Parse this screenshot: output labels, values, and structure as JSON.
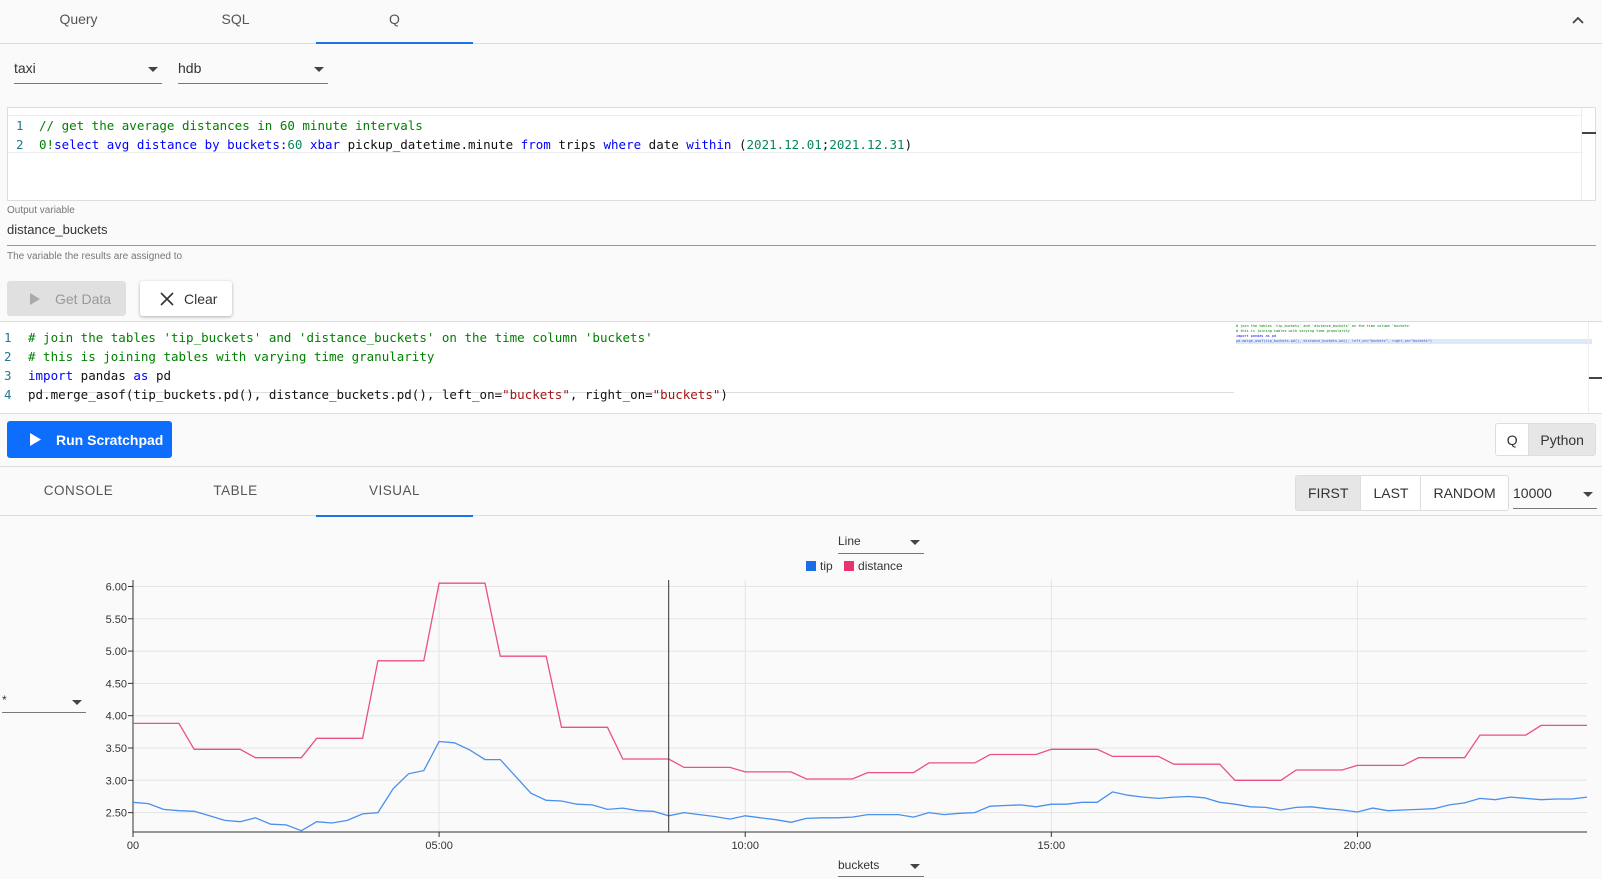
{
  "top_tabs": [
    {
      "label": "Query"
    },
    {
      "label": "SQL"
    },
    {
      "label": "Q"
    }
  ],
  "selects": {
    "table": "taxi",
    "database": "hdb"
  },
  "q_editor": {
    "line1": "// get the average distances in 60 minute intervals",
    "line2_parts": {
      "a": "0!",
      "b": "select",
      "c": " avg distance ",
      "d": "by",
      "e": " buckets:",
      "f": "60",
      "g": " xbar",
      "h": " pickup_datetime.minute ",
      "i": "from",
      "j": " trips ",
      "k": "where",
      "l": " date ",
      "m": "within",
      "n": " (",
      "o": "2021.12.01",
      "p": ";",
      "q": "2021.12.31",
      "r": ")"
    }
  },
  "output": {
    "label": "Output variable",
    "value": "distance_buckets",
    "help": "The variable the results are assigned to"
  },
  "buttons": {
    "get_data": "Get Data",
    "clear": "Clear",
    "run": "Run Scratchpad"
  },
  "py_editor": {
    "line1": "# join the tables 'tip_buckets' and 'distance_buckets' on the time column 'buckets'",
    "line2": "# this is joining tables with varying time granularity",
    "line3_a": "import",
    "line3_b": " pandas ",
    "line3_c": "as",
    "line3_d": " pd",
    "line4_a": "pd.merge_asof(tip_buckets.pd(), distance_buckets.pd(), left_on=",
    "line4_b": "\"buckets\"",
    "line4_c": ", right_on=",
    "line4_d": "\"buckets\"",
    "line4_e": ")"
  },
  "line_numbers": [
    "1",
    "2",
    "3",
    "4"
  ],
  "lang_toggle": [
    "Q",
    "Python"
  ],
  "result_tabs": [
    "CONSOLE",
    "TABLE",
    "VISUAL"
  ],
  "sample_options": [
    "FIRST",
    "LAST",
    "RANDOM"
  ],
  "sample_size": "10000",
  "chart_controls": {
    "chart_type": "Line",
    "x_column": "buckets",
    "y_column": "*"
  },
  "colors": {
    "accent": "#1a73e8",
    "run_button": "#0d6efd",
    "tip": "#2b7de9",
    "distance": "#e8336c"
  },
  "chart_data": {
    "type": "line",
    "xlabel": "",
    "ylabel": "",
    "x_ticks": [
      "00",
      "05:00",
      "10:00",
      "15:00",
      "20:00"
    ],
    "y_ticks": [
      "2.50",
      "3.00",
      "3.50",
      "4.00",
      "4.50",
      "5.00",
      "5.50",
      "6.00"
    ],
    "ylim": [
      2.2,
      6.1
    ],
    "xlim_hours": [
      0,
      23.75
    ],
    "legend": "top-center",
    "grid": true,
    "series": [
      {
        "name": "tip",
        "x_hours": [
          0,
          0.25,
          0.5,
          0.75,
          1,
          1.25,
          1.5,
          1.75,
          2,
          2.25,
          2.5,
          2.75,
          3,
          3.25,
          3.5,
          3.75,
          4,
          4.25,
          4.5,
          4.75,
          5,
          5.25,
          5.5,
          5.75,
          6,
          6.25,
          6.5,
          6.75,
          7,
          7.25,
          7.5,
          7.75,
          8,
          8.25,
          8.5,
          8.75,
          9,
          9.25,
          9.5,
          9.75,
          10,
          10.25,
          10.5,
          10.75,
          11,
          11.25,
          11.5,
          11.75,
          12,
          12.25,
          12.5,
          12.75,
          13,
          13.25,
          13.5,
          13.75,
          14,
          14.25,
          14.5,
          14.75,
          15,
          15.25,
          15.5,
          15.75,
          16,
          16.25,
          16.5,
          16.75,
          17,
          17.25,
          17.5,
          17.75,
          18,
          18.25,
          18.5,
          18.75,
          19,
          19.25,
          19.5,
          19.75,
          20,
          20.25,
          20.5,
          20.75,
          21,
          21.25,
          21.5,
          21.75,
          22,
          22.25,
          22.5,
          22.75,
          23,
          23.25,
          23.5,
          23.75
        ],
        "values": [
          2.66,
          2.64,
          2.55,
          2.53,
          2.52,
          2.45,
          2.38,
          2.36,
          2.42,
          2.32,
          2.31,
          2.22,
          2.36,
          2.34,
          2.38,
          2.48,
          2.5,
          2.87,
          3.1,
          3.15,
          3.6,
          3.58,
          3.47,
          3.32,
          3.32,
          3.06,
          2.8,
          2.69,
          2.68,
          2.63,
          2.62,
          2.55,
          2.57,
          2.53,
          2.52,
          2.45,
          2.5,
          2.47,
          2.44,
          2.4,
          2.45,
          2.42,
          2.39,
          2.35,
          2.41,
          2.42,
          2.42,
          2.43,
          2.47,
          2.47,
          2.47,
          2.43,
          2.5,
          2.47,
          2.49,
          2.5,
          2.6,
          2.61,
          2.62,
          2.59,
          2.63,
          2.63,
          2.66,
          2.66,
          2.82,
          2.77,
          2.74,
          2.72,
          2.74,
          2.75,
          2.73,
          2.66,
          2.63,
          2.59,
          2.58,
          2.54,
          2.58,
          2.59,
          2.56,
          2.54,
          2.51,
          2.57,
          2.53,
          2.54,
          2.55,
          2.56,
          2.62,
          2.65,
          2.72,
          2.7,
          2.74,
          2.72,
          2.7,
          2.71,
          2.71,
          2.74
        ]
      },
      {
        "name": "distance",
        "x_hours": [
          0,
          0.75,
          1,
          1.75,
          2,
          2.75,
          3,
          3.75,
          4,
          4.75,
          5,
          5.75,
          6,
          6.75,
          7,
          7.75,
          8,
          8.75,
          9,
          9.75,
          10,
          10.75,
          11,
          11.75,
          12,
          12.75,
          13,
          13.75,
          14,
          14.75,
          15,
          15.75,
          16,
          16.75,
          17,
          17.75,
          18,
          18.75,
          19,
          19.75,
          20,
          20.75,
          21,
          21.75,
          22,
          22.75,
          23,
          23.75
        ],
        "values": [
          3.88,
          3.88,
          3.48,
          3.48,
          3.35,
          3.35,
          3.65,
          3.65,
          4.85,
          4.85,
          6.05,
          6.05,
          4.92,
          4.92,
          3.82,
          3.82,
          3.33,
          3.33,
          3.2,
          3.2,
          3.13,
          3.13,
          3.02,
          3.02,
          3.12,
          3.12,
          3.27,
          3.27,
          3.4,
          3.4,
          3.48,
          3.48,
          3.37,
          3.37,
          3.25,
          3.25,
          3.0,
          3.0,
          3.16,
          3.16,
          3.23,
          3.23,
          3.35,
          3.35,
          3.7,
          3.7,
          3.85,
          3.85
        ]
      }
    ],
    "cursor_hour": 8.75
  }
}
